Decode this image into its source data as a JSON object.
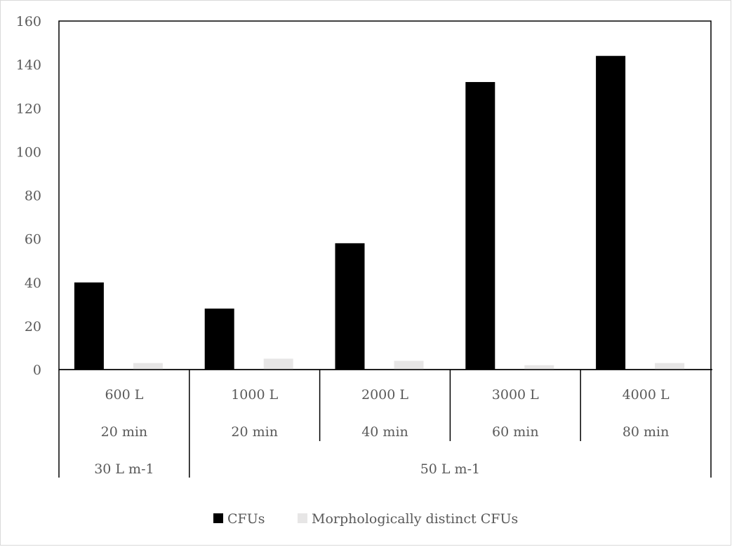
{
  "chart_data": {
    "type": "bar",
    "title": "",
    "xlabel": "",
    "ylabel": "",
    "ylim": [
      0,
      160
    ],
    "yticks": [
      0,
      20,
      40,
      60,
      80,
      100,
      120,
      140,
      160
    ],
    "grid": false,
    "legend_position": "bottom",
    "category_levels": {
      "volume": [
        "600 L",
        "1000 L",
        "2000 L",
        "3000 L",
        "4000 L"
      ],
      "duration": [
        "20 min",
        "20 min",
        "40 min",
        "60 min",
        "80 min"
      ],
      "flow_rate": [
        {
          "label": "30 L m-1",
          "span": [
            0,
            1
          ]
        },
        {
          "label": "50 L m-1",
          "span": [
            1,
            5
          ]
        }
      ]
    },
    "series": [
      {
        "name": "CFUs",
        "color": "#000000",
        "values": [
          40,
          28,
          58,
          132,
          144
        ]
      },
      {
        "name": "Morphologically distinct CFUs",
        "color": "#e7e6e6",
        "values": [
          3,
          5,
          4,
          2,
          3
        ]
      }
    ]
  }
}
